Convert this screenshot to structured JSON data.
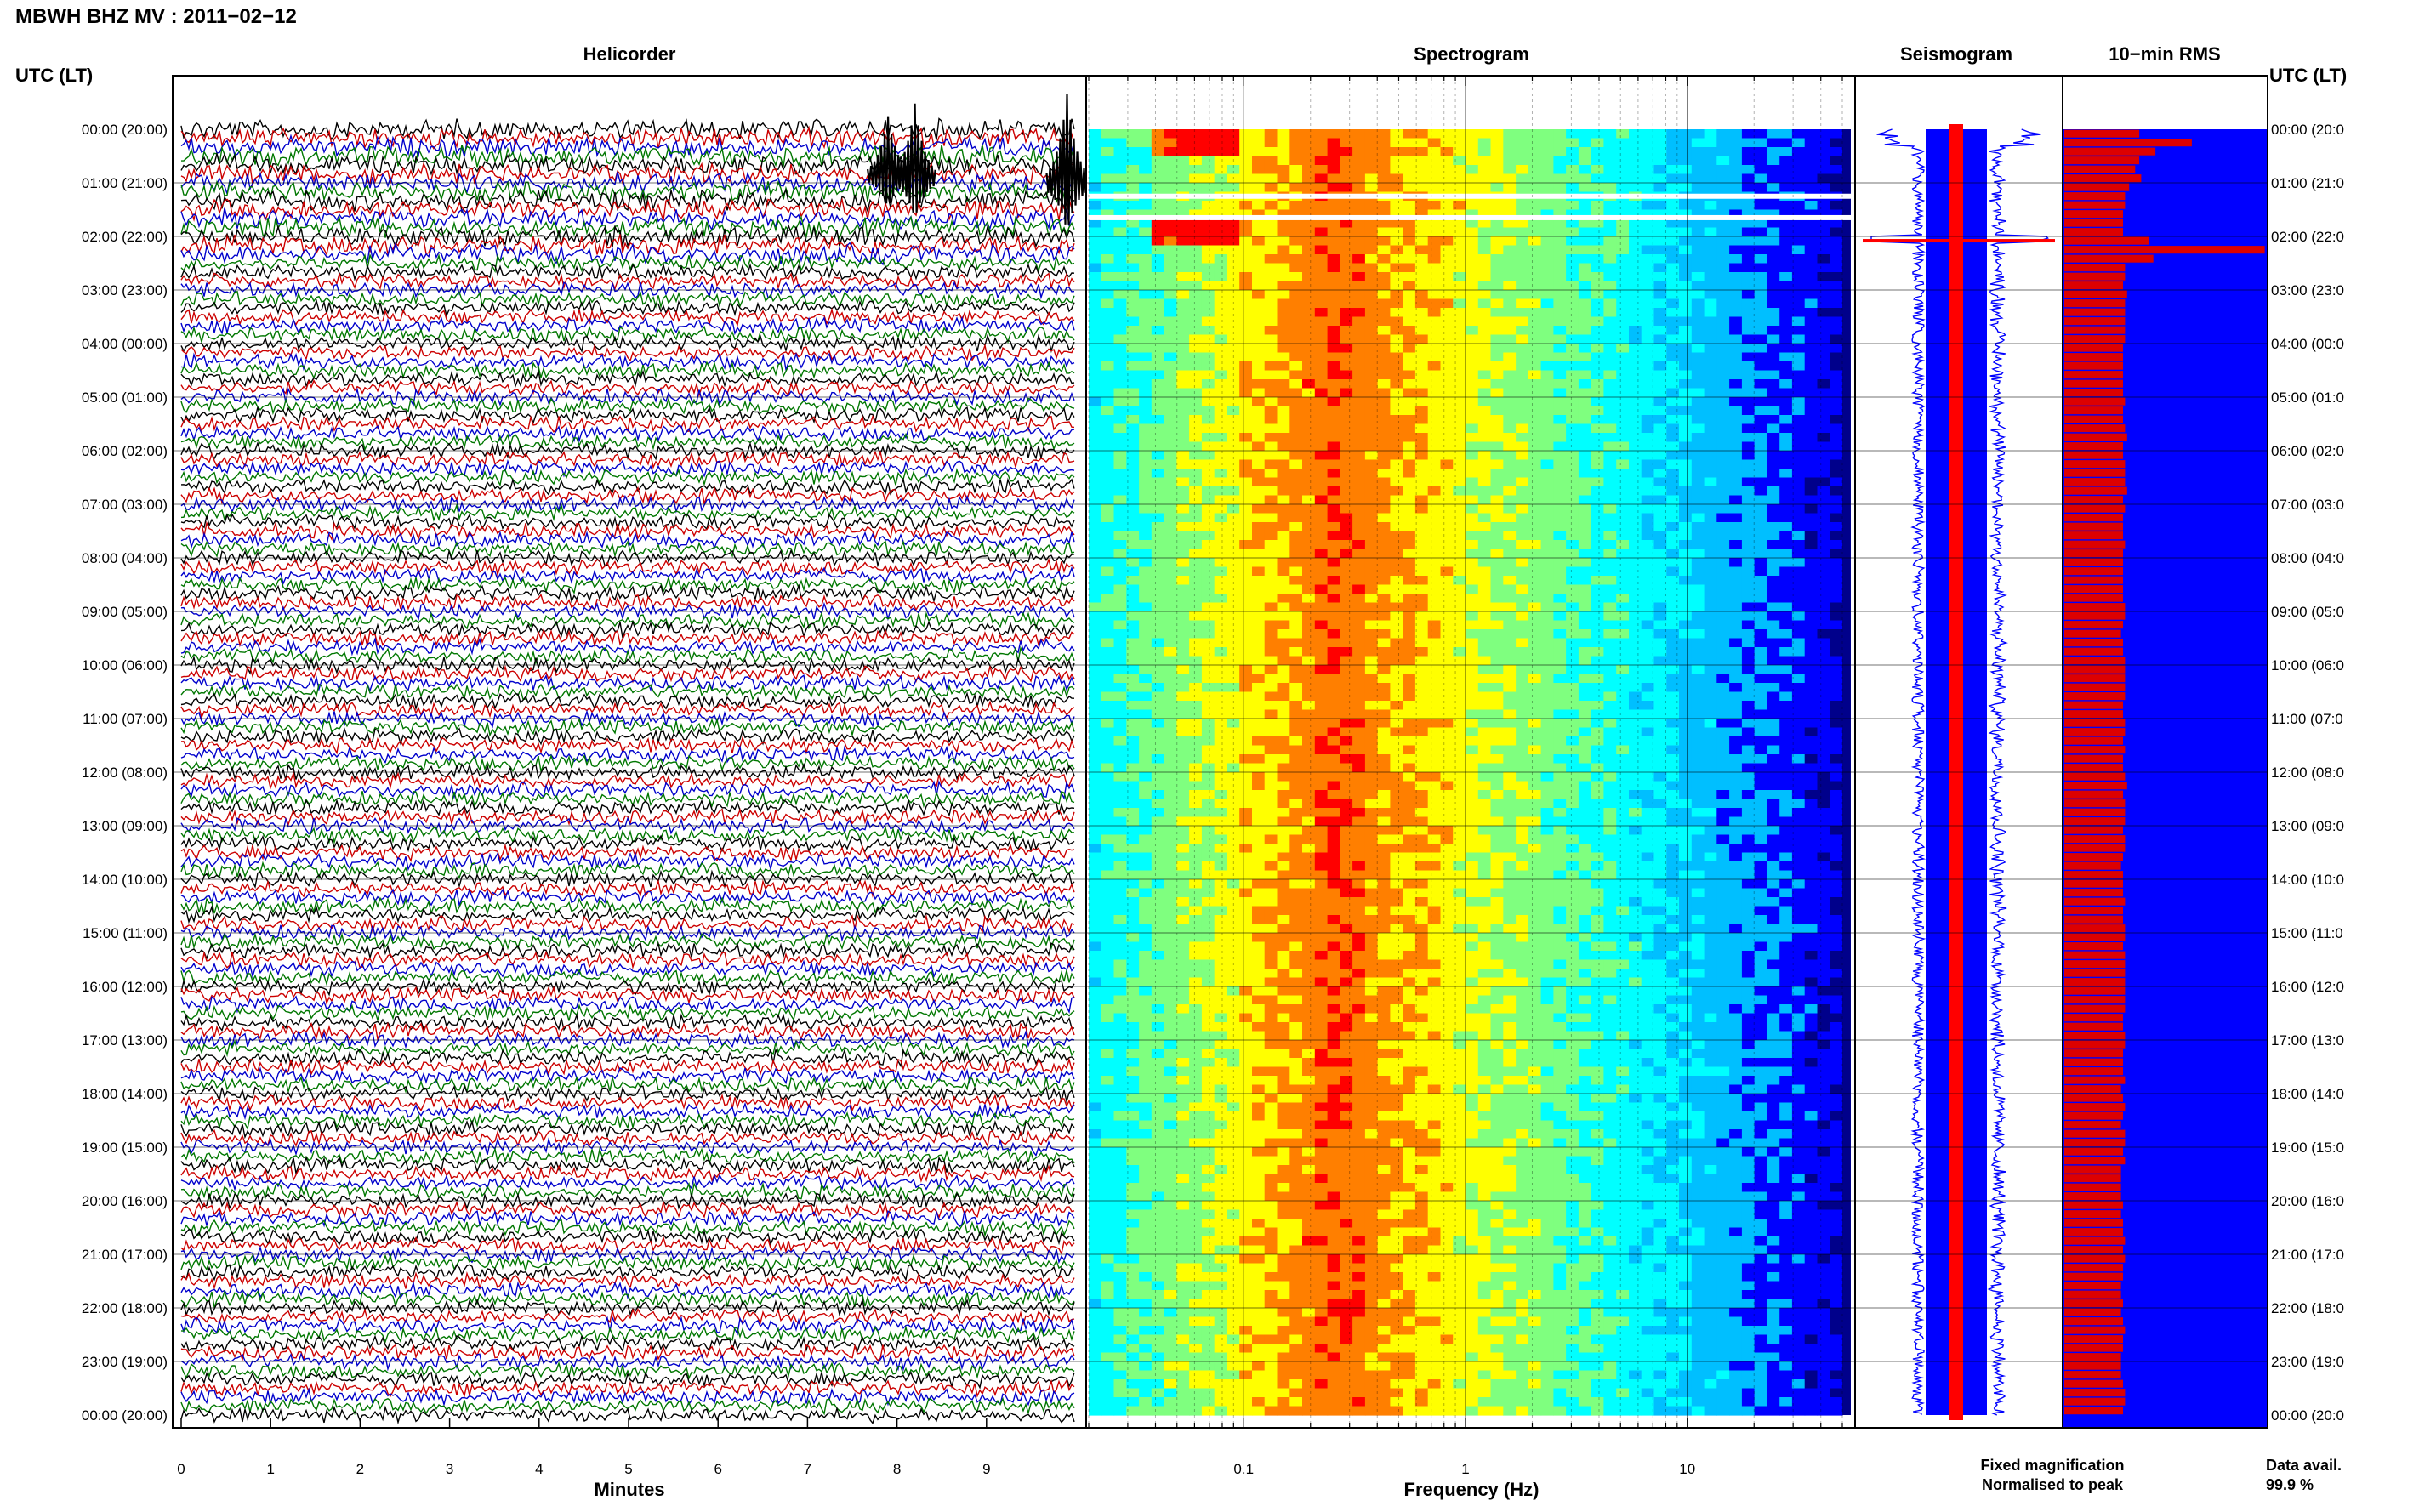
{
  "header": {
    "title": "MBWH BHZ MV : 2011−02−12"
  },
  "time_axis": {
    "label": "UTC (LT)",
    "ticks": [
      "00:00 (20:00)",
      "01:00 (21:00)",
      "02:00 (22:00)",
      "03:00 (23:00)",
      "04:00 (00:00)",
      "05:00 (01:00)",
      "06:00 (02:00)",
      "07:00 (03:00)",
      "08:00 (04:00)",
      "09:00 (05:00)",
      "10:00 (06:00)",
      "11:00 (07:00)",
      "12:00 (08:00)",
      "13:00 (09:00)",
      "14:00 (10:00)",
      "15:00 (11:00)",
      "16:00 (12:00)",
      "17:00 (13:00)",
      "18:00 (14:00)",
      "19:00 (15:00)",
      "20:00 (16:00)",
      "21:00 (17:00)",
      "22:00 (18:00)",
      "23:00 (19:00)",
      "00:00 (20:00)"
    ],
    "right_ticks": [
      "00:00 (20:0",
      "01:00 (21:0",
      "02:00 (22:0",
      "03:00 (23:0",
      "04:00 (00:0",
      "05:00 (01:0",
      "06:00 (02:0",
      "07:00 (03:0",
      "08:00 (04:0",
      "09:00 (05:0",
      "10:00 (06:0",
      "11:00 (07:0",
      "12:00 (08:0",
      "13:00 (09:0",
      "14:00 (10:0",
      "15:00 (11:0",
      "16:00 (12:0",
      "17:00 (13:0",
      "18:00 (14:0",
      "19:00 (15:0",
      "20:00 (16:0",
      "21:00 (17:0",
      "22:00 (18:0",
      "23:00 (19:0",
      "00:00 (20:0"
    ]
  },
  "chart_data": [
    {
      "type": "line",
      "panel": "helicorder",
      "title": "Helicorder",
      "xlabel": "Minutes",
      "xlim": [
        0,
        10
      ],
      "x_ticks": [
        "0",
        "1",
        "2",
        "3",
        "4",
        "5",
        "6",
        "7",
        "8",
        "9"
      ],
      "x_tick_values": [
        0,
        1,
        2,
        3,
        4,
        5,
        6,
        7,
        8,
        9
      ],
      "trace_colors": [
        "#000000",
        "#cc0000",
        "#0000cc",
        "#007700"
      ],
      "lines_per_hour": 6,
      "events": [
        {
          "hour": 0.9,
          "minute": 7.9,
          "amplitude": 4
        },
        {
          "hour": 0.95,
          "minute": 8.2,
          "amplitude": 5
        },
        {
          "hour": 1.05,
          "minute": 9.9,
          "amplitude": 6
        }
      ]
    },
    {
      "type": "heatmap",
      "panel": "spectrogram",
      "title": "Spectrogram",
      "xlabel": "Frequency (Hz)",
      "x_scale": "log",
      "xlim": [
        0.02,
        50
      ],
      "x_ticks": [
        "0.1",
        "1",
        "10"
      ],
      "x_tick_values": [
        0.1,
        1,
        10
      ],
      "peak_frequency_hz": 0.25,
      "colormap": [
        "#00008b",
        "#0000ff",
        "#00bfff",
        "#00ffff",
        "#7fff7f",
        "#ffff00",
        "#ff7f00",
        "#ff0000"
      ],
      "gaps": [
        {
          "hour": 1.25
        },
        {
          "hour": 1.65
        }
      ]
    },
    {
      "type": "line",
      "panel": "seismogram",
      "title": "Seismogram",
      "series": [
        {
          "name": "Fixed magnification",
          "color": "#0000ff"
        },
        {
          "name": "Normalised to peak",
          "color": "#ff0000"
        }
      ]
    },
    {
      "type": "bar",
      "panel": "rms",
      "title": "10−min RMS",
      "orientation": "horizontal",
      "interval_minutes": 10,
      "bar_color": "#dd0000",
      "background_color": "#0000ff",
      "data_availability_label": "Data avail.",
      "data_availability": "99.9 %",
      "rms_fraction": [
        0.37,
        0.63,
        0.45,
        0.37,
        0.35,
        0.38,
        0.32,
        0.3,
        0.3,
        0.29,
        0.29,
        0.29,
        0.42,
        0.99,
        0.44,
        0.3,
        0.3,
        0.29,
        0.31,
        0.3,
        0.3,
        0.3,
        0.3,
        0.3,
        0.29,
        0.29,
        0.29,
        0.29,
        0.29,
        0.29,
        0.3,
        0.29,
        0.29,
        0.3,
        0.31,
        0.29,
        0.29,
        0.3,
        0.3,
        0.3,
        0.31,
        0.29,
        0.3,
        0.29,
        0.29,
        0.29,
        0.3,
        0.29,
        0.29,
        0.29,
        0.29,
        0.29,
        0.29,
        0.3,
        0.3,
        0.29,
        0.28,
        0.29,
        0.29,
        0.3,
        0.3,
        0.3,
        0.3,
        0.3,
        0.29,
        0.29,
        0.3,
        0.3,
        0.29,
        0.3,
        0.29,
        0.29,
        0.3,
        0.31,
        0.29,
        0.3,
        0.3,
        0.3,
        0.29,
        0.3,
        0.3,
        0.29,
        0.28,
        0.29,
        0.29,
        0.29,
        0.3,
        0.29,
        0.29,
        0.3,
        0.3,
        0.29,
        0.3,
        0.3,
        0.3,
        0.3,
        0.3,
        0.3,
        0.3,
        0.29,
        0.29,
        0.3,
        0.3,
        0.29,
        0.29,
        0.29,
        0.3,
        0.28,
        0.29,
        0.3,
        0.29,
        0.28,
        0.3,
        0.3,
        0.29,
        0.3,
        0.28,
        0.28,
        0.28,
        0.28,
        0.29,
        0.28,
        0.29,
        0.29,
        0.3,
        0.29,
        0.3,
        0.29,
        0.29,
        0.28,
        0.28,
        0.29,
        0.28,
        0.29,
        0.3,
        0.29,
        0.29,
        0.28,
        0.28,
        0.28,
        0.29,
        0.3,
        0.3,
        0.29
      ]
    }
  ]
}
